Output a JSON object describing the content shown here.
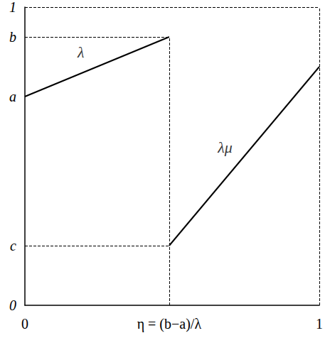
{
  "chart_data": {
    "type": "line",
    "xlim": [
      0,
      1
    ],
    "ylim": [
      0,
      1
    ],
    "xticks": [
      0,
      {
        "value": 0.49,
        "label": "η = (b−a)/λ"
      },
      1
    ],
    "yticks": [
      0,
      {
        "value": 0.2,
        "label": "c"
      },
      {
        "value": 0.7,
        "label": "a"
      },
      {
        "value": 0.9,
        "label": "b"
      },
      1
    ],
    "grid": false,
    "series": [
      {
        "color": "#000000",
        "x": [
          0,
          0.49
        ],
        "values": [
          0.7,
          0.9
        ]
      },
      {
        "color": "#000000",
        "x": [
          0.49,
          1
        ],
        "values": [
          0.2,
          0.8
        ]
      }
    ],
    "annotations": [
      {
        "text": "λ",
        "x": 0.19,
        "y": 0.85
      },
      {
        "text": "λμ",
        "x": 0.68,
        "y": 0.53
      }
    ]
  }
}
